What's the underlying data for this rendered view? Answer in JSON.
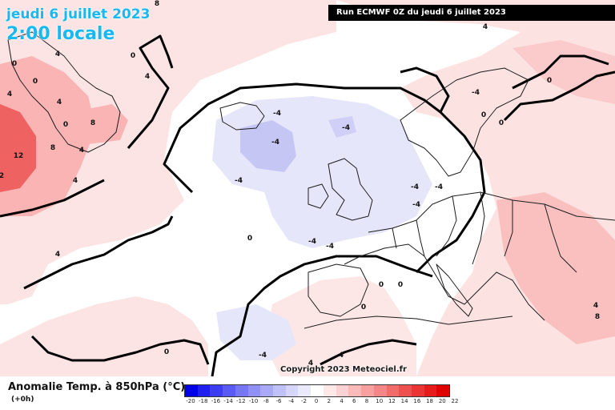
{
  "header": {
    "date_line": "jeudi 6 juillet 2023",
    "time_line": "2:00 locale",
    "run_label": "Run ECMWF 0Z du jeudi 6 juillet 2023"
  },
  "map": {
    "contour_labels": [
      "8",
      "0",
      "4",
      "0",
      "4",
      "0",
      "4",
      "4",
      "0",
      "8",
      "12",
      "8",
      "4",
      "4",
      "2",
      "4",
      "-4",
      "-4",
      "-4",
      "-4",
      "-4",
      "-4",
      "-4",
      "-4",
      "-4",
      "0",
      "-4",
      "-4",
      "0",
      "0",
      "0",
      "0",
      "0",
      "0",
      "4",
      "4",
      "4",
      "8",
      "0",
      "4"
    ],
    "copyright": "Copyright 2023 Meteociel.fr"
  },
  "legend": {
    "title": "Anomalie Temp. à 850hPa (°C)",
    "lead": "(+0h)",
    "ticks": [
      "-20",
      "-18",
      "-16",
      "-14",
      "-12",
      "-10",
      "-8",
      "-6",
      "-4",
      "-2",
      "0",
      "2",
      "4",
      "6",
      "8",
      "10",
      "12",
      "14",
      "16",
      "18",
      "20",
      "22"
    ],
    "colors": [
      "#0000e8",
      "#1f1ff0",
      "#3d3df2",
      "#5a5af4",
      "#7676f6",
      "#9090f6",
      "#a9a9f8",
      "#c0c0fa",
      "#d6d6fc",
      "#eaeafe",
      "#ffffff",
      "#ffe8e8",
      "#fcd2d2",
      "#fababa",
      "#f8a0a0",
      "#f58686",
      "#f26b6b",
      "#ee5050",
      "#ea3535",
      "#e51c1c",
      "#e00000"
    ]
  }
}
